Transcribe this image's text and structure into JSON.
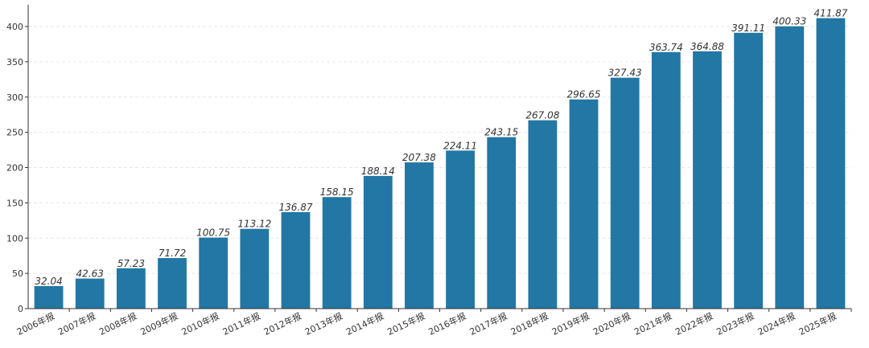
{
  "chart_data": {
    "type": "bar",
    "categories": [
      "2006年报",
      "2007年报",
      "2008年报",
      "2009年报",
      "2010年报",
      "2011年报",
      "2012年报",
      "2013年报",
      "2014年报",
      "2015年报",
      "2016年报",
      "2017年报",
      "2018年报",
      "2019年报",
      "2020年报",
      "2021年报",
      "2022年报",
      "2023年报",
      "2024年报",
      "2025年报"
    ],
    "values": [
      32.04,
      42.63,
      57.23,
      71.72,
      100.75,
      113.12,
      136.87,
      158.15,
      188.14,
      207.38,
      224.11,
      243.15,
      267.08,
      296.65,
      327.43,
      363.74,
      364.88,
      391.11,
      400.33,
      411.87
    ],
    "value_labels": [
      "32.04",
      "42.63",
      "57.23",
      "71.72",
      "100.75",
      "113.12",
      "136.87",
      "158.15",
      "188.14",
      "207.38",
      "224.11",
      "243.15",
      "267.08",
      "296.65",
      "327.43",
      "363.74",
      "364.88",
      "391.11",
      "400.33",
      "411.87"
    ],
    "title": "",
    "xlabel": "",
    "ylabel": "",
    "ylim": [
      0,
      400
    ],
    "yticks": [
      "0",
      "50",
      "100",
      "150",
      "200",
      "250",
      "300",
      "350",
      "400"
    ],
    "grid": true,
    "bar_color": "#2277a4",
    "legend": "none"
  }
}
